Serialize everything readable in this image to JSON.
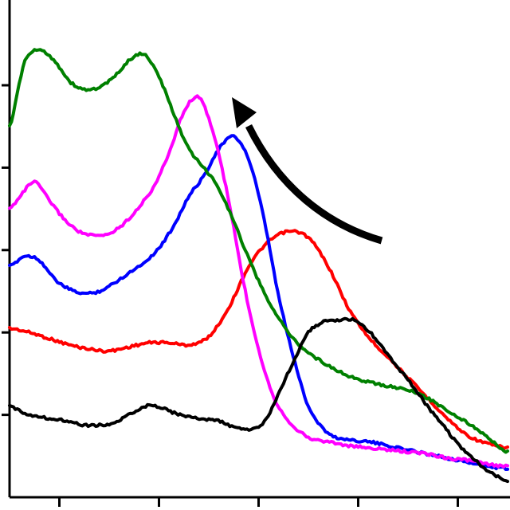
{
  "chart_data": {
    "type": "line",
    "title": "",
    "xlabel": "",
    "ylabel": "",
    "xlim": [
      0,
      100
    ],
    "ylim": [
      0,
      100
    ],
    "grid": false,
    "x_ticks": [
      10,
      30,
      50,
      70,
      90
    ],
    "y_ticks": [
      20,
      40,
      60,
      80,
      100
    ],
    "annotations": [
      {
        "type": "arrow",
        "direction": "up-left",
        "color": "#000000"
      }
    ],
    "series": [
      {
        "color": "#ff0000",
        "x": [
          0,
          4,
          8,
          12,
          16,
          20,
          24,
          28,
          32,
          36,
          40,
          44,
          48,
          52,
          56,
          60,
          64,
          68,
          72,
          76,
          80,
          84,
          88,
          92,
          96,
          100
        ],
        "y": [
          41,
          40,
          38.5,
          37,
          36,
          35.5,
          36.5,
          37.5,
          37.5,
          37,
          39,
          46,
          56,
          62,
          64.5,
          63,
          56,
          46,
          39,
          34,
          29,
          24,
          19,
          15,
          13,
          12
        ]
      },
      {
        "color": "#0000ff",
        "x": [
          0,
          3,
          6,
          9,
          12,
          15,
          18,
          21,
          24,
          27,
          30,
          33,
          36,
          39,
          42,
          45,
          48,
          51,
          54,
          57,
          60,
          64,
          68,
          72,
          76,
          80,
          84,
          88,
          92,
          96,
          100
        ],
        "y": [
          56,
          58.5,
          57.5,
          53,
          50.5,
          49.5,
          50,
          52,
          54.5,
          57,
          60.5,
          66,
          73,
          78,
          84.5,
          87.5,
          82,
          68,
          49,
          34,
          22,
          15.5,
          14,
          13.5,
          12.5,
          11.5,
          10.5,
          9.5,
          8.5,
          7.5,
          7
        ]
      },
      {
        "color": "#ff00ff",
        "x": [
          0,
          2,
          5,
          8,
          11,
          14,
          17,
          20,
          23,
          26,
          29,
          32,
          35,
          38,
          41,
          44,
          47,
          50,
          53,
          56,
          60,
          64,
          68,
          72,
          76,
          80,
          84,
          88,
          92,
          96,
          100
        ],
        "y": [
          70,
          73,
          76.5,
          72,
          67.5,
          64.5,
          63.5,
          64,
          66.5,
          70.5,
          75.5,
          83.5,
          93.5,
          97,
          88,
          72,
          52,
          36,
          24.5,
          18.5,
          14.5,
          13.5,
          12.5,
          12,
          11.5,
          11,
          10.5,
          9.5,
          9,
          8,
          7.5
        ]
      },
      {
        "color": "#008000",
        "x": [
          0,
          3,
          6,
          9,
          12,
          15,
          18,
          21,
          24,
          27,
          30,
          33,
          36,
          39,
          42,
          45,
          48,
          51,
          54,
          57,
          60,
          64,
          68,
          72,
          76,
          80,
          84,
          88,
          92,
          96,
          100
        ],
        "y": [
          90,
          105.5,
          108.5,
          106,
          101,
          99,
          99.5,
          102,
          106,
          107.5,
          102,
          93,
          84.5,
          80,
          75,
          67,
          58,
          50,
          43.5,
          38.5,
          35,
          32,
          29.5,
          28,
          27,
          26,
          24,
          21,
          18,
          14.5,
          11
        ]
      },
      {
        "color": "#000000",
        "x": [
          0,
          3,
          6,
          9,
          12,
          15,
          18,
          21,
          24,
          27,
          30,
          33,
          36,
          39,
          42,
          45,
          48,
          51,
          54,
          57,
          60,
          63,
          66,
          69,
          72,
          75,
          78,
          81,
          84,
          87,
          90,
          93,
          96,
          100
        ],
        "y": [
          22,
          20.5,
          19.5,
          19,
          18.5,
          17.5,
          17.5,
          18,
          20,
          22,
          22,
          20.5,
          19.5,
          19,
          18.5,
          17,
          16.5,
          18,
          25,
          33,
          40,
          42.5,
          43,
          43,
          40.5,
          36,
          31.5,
          27,
          22,
          17.5,
          13,
          9.5,
          6.5,
          4
        ]
      }
    ]
  },
  "colors": {
    "axis": "#000000",
    "background": "#ffffff"
  }
}
